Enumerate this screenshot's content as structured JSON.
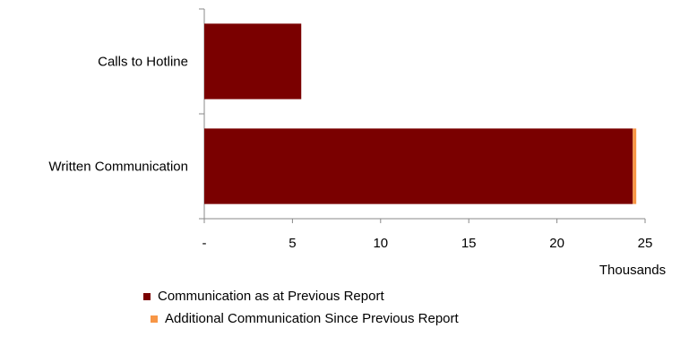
{
  "chart_data": {
    "type": "bar",
    "orientation": "horizontal",
    "stacked": true,
    "categories": [
      "Calls to Hotline",
      "Written Communication"
    ],
    "series": [
      {
        "name": "Communication as at Previous Report",
        "values": [
          5.5,
          24.3
        ],
        "color": "#7a0000"
      },
      {
        "name": "Additional Communication Since Previous Report",
        "values": [
          0,
          0.2
        ],
        "color": "#f79646"
      }
    ],
    "x_unit_label": "Thousands",
    "xlim": [
      0,
      25
    ],
    "x_ticks": [
      {
        "value": 0,
        "label": "-"
      },
      {
        "value": 5,
        "label": "5"
      },
      {
        "value": 10,
        "label": "10"
      },
      {
        "value": 15,
        "label": "15"
      },
      {
        "value": 20,
        "label": "20"
      },
      {
        "value": 25,
        "label": "25"
      }
    ],
    "grid": false,
    "legend_position": "bottom"
  }
}
